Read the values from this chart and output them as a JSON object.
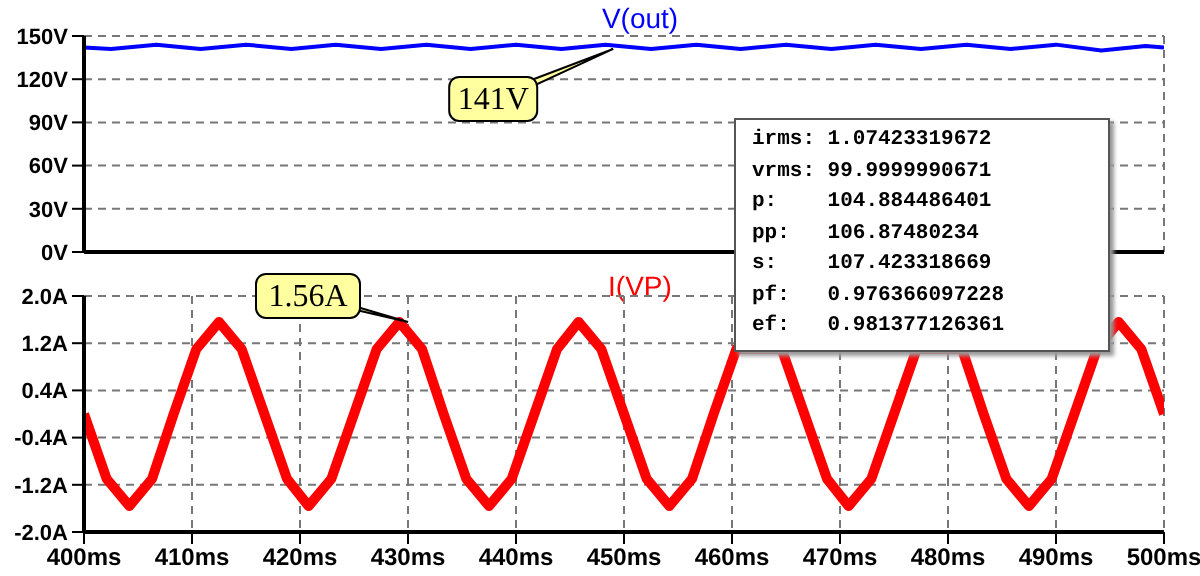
{
  "chart_data": [
    {
      "type": "line",
      "xlim": [
        400,
        500
      ],
      "ylim": [
        0,
        150
      ],
      "xticks": [
        {
          "value": 400,
          "label": null
        },
        {
          "value": 410,
          "label": null
        },
        {
          "value": 420,
          "label": null
        },
        {
          "value": 430,
          "label": null
        },
        {
          "value": 440,
          "label": null
        },
        {
          "value": 450,
          "label": null
        },
        {
          "value": 460,
          "label": null
        },
        {
          "value": 470,
          "label": null
        },
        {
          "value": 480,
          "label": null
        },
        {
          "value": 490,
          "label": null
        },
        {
          "value": 500,
          "label": null
        }
      ],
      "yticks": [
        {
          "value": 0,
          "label": "0V"
        },
        {
          "value": 30,
          "label": "30V"
        },
        {
          "value": 60,
          "label": "60V"
        },
        {
          "value": 90,
          "label": "90V"
        },
        {
          "value": 120,
          "label": "120V"
        },
        {
          "value": 150,
          "label": "150V"
        }
      ],
      "tick_labels": "y",
      "grid": true,
      "marker": "none",
      "line_style": "solid",
      "series": [
        {
          "name": "V(out)",
          "color": "#0000ff",
          "x": [
            400,
            402.5,
            406.7,
            410.8,
            415,
            419.2,
            423.3,
            427.5,
            431.7,
            435.8,
            440,
            444.2,
            448.3,
            452.5,
            456.7,
            460.8,
            465,
            469.2,
            473.3,
            477.5,
            481.7,
            485.8,
            490,
            494.2,
            498.3,
            500
          ],
          "values": [
            142,
            141,
            144,
            141,
            144,
            141,
            144,
            141,
            144,
            141,
            144,
            141,
            144,
            141,
            144,
            141,
            144,
            141,
            144,
            141,
            144,
            141,
            144,
            140,
            143,
            142
          ]
        }
      ],
      "annotations": [
        {
          "text": "141V",
          "x": 449,
          "y": 141
        },
        "irms: 1.07423319672",
        "vrms: 99.9999990671",
        "p:    104.884486401",
        "pp:   106.87480234",
        "s:    107.423318669",
        "pf:   0.976366097228",
        "ef:   0.981377126361"
      ]
    },
    {
      "type": "line",
      "xlim": [
        400,
        500
      ],
      "ylim": [
        -2,
        2
      ],
      "xticks": [
        {
          "value": 400,
          "label": "400ms"
        },
        {
          "value": 410,
          "label": "410ms"
        },
        {
          "value": 420,
          "label": "420ms"
        },
        {
          "value": 430,
          "label": "430ms"
        },
        {
          "value": 440,
          "label": "440ms"
        },
        {
          "value": 450,
          "label": "450ms"
        },
        {
          "value": 460,
          "label": "460ms"
        },
        {
          "value": 470,
          "label": "470ms"
        },
        {
          "value": 480,
          "label": "480ms"
        },
        {
          "value": 490,
          "label": "490ms"
        },
        {
          "value": 500,
          "label": "500ms"
        }
      ],
      "yticks": [
        {
          "value": -2,
          "label": "-2.0A"
        },
        {
          "value": -1.2,
          "label": "-1.2A"
        },
        {
          "value": -0.4,
          "label": "-0.4A"
        },
        {
          "value": 0.4,
          "label": "0.4A"
        },
        {
          "value": 1.2,
          "label": "1.2A"
        },
        {
          "value": 2,
          "label": "2.0A"
        }
      ],
      "grid": true,
      "marker": "none",
      "line_style": "solid",
      "series": [
        {
          "name": "I(VP)",
          "color": "#ff0000",
          "x": [
            400,
            402.1,
            404.2,
            406.3,
            408.3,
            410.4,
            412.5,
            414.6,
            416.7,
            418.8,
            420.8,
            422.9,
            425,
            427.1,
            429.2,
            431.3,
            433.3,
            435.4,
            437.5,
            439.6,
            441.7,
            443.8,
            445.8,
            447.9,
            450,
            452.1,
            454.2,
            456.3,
            458.3,
            460.4,
            462.5,
            464.6,
            466.7,
            468.8,
            470.8,
            472.9,
            475,
            477.1,
            479.2,
            481.3,
            483.3,
            485.4,
            487.5,
            489.6,
            491.7,
            493.8,
            495.8,
            497.9,
            500
          ],
          "values": [
            0,
            -1.1,
            -1.56,
            -1.1,
            0,
            1.1,
            1.56,
            1.1,
            0,
            -1.1,
            -1.56,
            -1.1,
            0,
            1.1,
            1.56,
            1.1,
            0,
            -1.1,
            -1.56,
            -1.1,
            0,
            1.1,
            1.56,
            1.1,
            0,
            -1.1,
            -1.56,
            -1.1,
            0,
            1.1,
            null,
            1.1,
            0,
            -1.1,
            -1.56,
            -1.1,
            0,
            1.1,
            null,
            1.1,
            0,
            -1.1,
            -1.56,
            -1.1,
            0,
            1.1,
            1.56,
            1.1,
            0
          ]
        }
      ],
      "annotations": [
        {
          "text": "1.56A",
          "x": 430,
          "y": 1.56
        }
      ]
    }
  ]
}
